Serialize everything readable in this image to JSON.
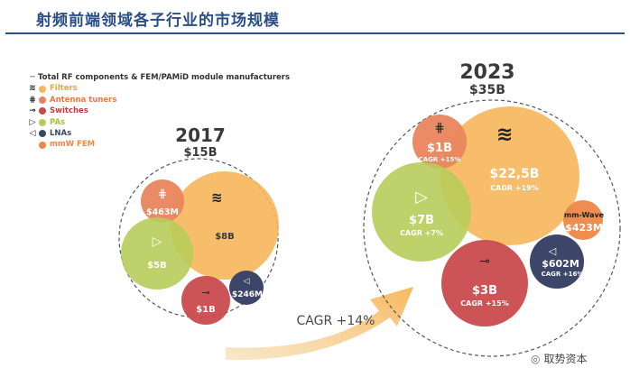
{
  "header": {
    "title": "射频前端领域各子行业的市场规模"
  },
  "legend": {
    "total_label": "Total RF components & FEM/PAMiD module manufacturers",
    "items": [
      {
        "label": "Filters",
        "color": "#f6b65a",
        "icon": "filter-wave-icon"
      },
      {
        "label": "Antenna tuners",
        "color": "#e9855e",
        "icon": "antenna-tuner-icon"
      },
      {
        "label": "Switches",
        "color": "#c94a4d",
        "icon": "switch-icon"
      },
      {
        "label": "PAs",
        "color": "#b8cc5a",
        "icon": "amplifier-triangle-icon"
      },
      {
        "label": "LNAs",
        "color": "#3d4668",
        "icon": "lna-triangle-icon"
      },
      {
        "label": "mmW FEM",
        "color": "#ee8747",
        "icon": ""
      }
    ]
  },
  "chart_data": {
    "type": "bubble",
    "title": "射频前端领域各子行业的市场规模",
    "growth_label": "CAGR +14%",
    "years": [
      {
        "year": "2017",
        "total": "$15B",
        "segments": [
          {
            "name": "Filters",
            "value_label": "$8B",
            "value_musd": 8000
          },
          {
            "name": "Antenna tuners",
            "value_label": "$463M",
            "value_musd": 463
          },
          {
            "name": "PAs",
            "value_label": "$5B",
            "value_musd": 5000
          },
          {
            "name": "Switches",
            "value_label": "$1B",
            "value_musd": 1000
          },
          {
            "name": "LNAs",
            "value_label": "$246M",
            "value_musd": 246
          }
        ]
      },
      {
        "year": "2023",
        "total": "$35B",
        "segments": [
          {
            "name": "Filters",
            "value_label": "$22,5B",
            "value_musd": 22500,
            "cagr": "CAGR +19%"
          },
          {
            "name": "Antenna tuners",
            "value_label": "$1B",
            "value_musd": 1000,
            "cagr": "CAGR +15%"
          },
          {
            "name": "PAs",
            "value_label": "$7B",
            "value_musd": 7000,
            "cagr": "CAGR +7%"
          },
          {
            "name": "Switches",
            "value_label": "$3B",
            "value_musd": 3000,
            "cagr": "CAGR +15%"
          },
          {
            "name": "LNAs",
            "value_label": "$602M",
            "value_musd": 602,
            "cagr": "CAGR +16%"
          },
          {
            "name": "mmW FEM",
            "label": "mm-Wave",
            "value_label": "$423M",
            "value_musd": 423
          }
        ]
      }
    ]
  },
  "watermark": {
    "text": "取势资本"
  }
}
